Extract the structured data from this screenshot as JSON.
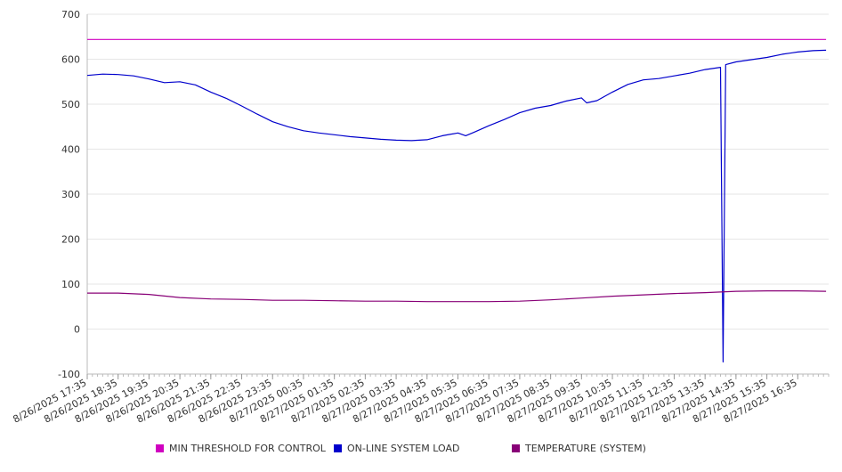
{
  "chart_data": {
    "type": "line",
    "title": "",
    "xlabel": "",
    "ylabel": "",
    "ylim": [
      -100,
      700
    ],
    "yticks": [
      -100,
      0,
      100,
      200,
      300,
      400,
      500,
      600,
      700
    ],
    "grid": true,
    "legend_position": "bottom",
    "x_tick_labels": [
      "8/26/2025 17:35",
      "8/26/2025 18:35",
      "8/26/2025 19:35",
      "8/26/2025 20:35",
      "8/26/2025 21:35",
      "8/26/2025 22:35",
      "8/26/2025 23:35",
      "8/27/2025 00:35",
      "8/27/2025 01:35",
      "8/27/2025 02:35",
      "8/27/2025 03:35",
      "8/27/2025 04:35",
      "8/27/2025 05:35",
      "8/27/2025 06:35",
      "8/27/2025 07:35",
      "8/27/2025 08:35",
      "8/27/2025 09:35",
      "8/27/2025 10:35",
      "8/27/2025 11:35",
      "8/27/2025 12:35",
      "8/27/2025 13:35",
      "8/27/2025 14:35",
      "8/27/2025 15:35",
      "8/27/2025 16:35"
    ],
    "series": [
      {
        "name": "MIN THRESHOLD FOR CONTROL",
        "color": "#d000c0",
        "points": [
          [
            "8/26/2025 17:35",
            644
          ],
          [
            "8/27/2025 17:30",
            644
          ]
        ]
      },
      {
        "name": "ON-LINE SYSTEM LOAD",
        "color": "#0000cc",
        "points": [
          [
            "8/26/2025 17:35",
            564
          ],
          [
            "8/26/2025 18:05",
            567
          ],
          [
            "8/26/2025 18:35",
            566
          ],
          [
            "8/26/2025 19:05",
            563
          ],
          [
            "8/26/2025 19:35",
            556
          ],
          [
            "8/26/2025 20:05",
            548
          ],
          [
            "8/26/2025 20:35",
            550
          ],
          [
            "8/26/2025 21:05",
            543
          ],
          [
            "8/26/2025 21:35",
            527
          ],
          [
            "8/26/2025 22:05",
            513
          ],
          [
            "8/26/2025 22:35",
            496
          ],
          [
            "8/26/2025 23:05",
            478
          ],
          [
            "8/26/2025 23:35",
            461
          ],
          [
            "8/27/2025 00:05",
            450
          ],
          [
            "8/27/2025 00:35",
            441
          ],
          [
            "8/27/2025 01:05",
            436
          ],
          [
            "8/27/2025 01:35",
            432
          ],
          [
            "8/27/2025 02:05",
            428
          ],
          [
            "8/27/2025 02:35",
            425
          ],
          [
            "8/27/2025 03:05",
            422
          ],
          [
            "8/27/2025 03:35",
            420
          ],
          [
            "8/27/2025 04:05",
            419
          ],
          [
            "8/27/2025 04:35",
            421
          ],
          [
            "8/27/2025 05:05",
            430
          ],
          [
            "8/27/2025 05:35",
            436
          ],
          [
            "8/27/2025 05:50",
            430
          ],
          [
            "8/27/2025 06:05",
            437
          ],
          [
            "8/27/2025 06:35",
            452
          ],
          [
            "8/27/2025 07:05",
            466
          ],
          [
            "8/27/2025 07:35",
            481
          ],
          [
            "8/27/2025 08:05",
            491
          ],
          [
            "8/27/2025 08:35",
            497
          ],
          [
            "8/27/2025 09:05",
            507
          ],
          [
            "8/27/2025 09:35",
            514
          ],
          [
            "8/27/2025 09:45",
            503
          ],
          [
            "8/27/2025 10:05",
            508
          ],
          [
            "8/27/2025 10:35",
            527
          ],
          [
            "8/27/2025 11:05",
            544
          ],
          [
            "8/27/2025 11:35",
            554
          ],
          [
            "8/27/2025 12:05",
            557
          ],
          [
            "8/27/2025 12:35",
            563
          ],
          [
            "8/27/2025 13:05",
            569
          ],
          [
            "8/27/2025 13:35",
            577
          ],
          [
            "8/27/2025 14:05",
            582
          ],
          [
            "8/27/2025 14:10",
            -73
          ],
          [
            "8/27/2025 14:15",
            588
          ],
          [
            "8/27/2025 14:35",
            594
          ],
          [
            "8/27/2025 15:05",
            599
          ],
          [
            "8/27/2025 15:35",
            604
          ],
          [
            "8/27/2025 16:05",
            611
          ],
          [
            "8/27/2025 16:35",
            616
          ],
          [
            "8/27/2025 17:05",
            619
          ],
          [
            "8/27/2025 17:30",
            620
          ]
        ]
      },
      {
        "name": "TEMPERATURE (SYSTEM)",
        "color": "#880077",
        "points": [
          [
            "8/26/2025 17:35",
            80
          ],
          [
            "8/26/2025 18:35",
            80
          ],
          [
            "8/26/2025 19:35",
            77
          ],
          [
            "8/26/2025 20:35",
            70
          ],
          [
            "8/26/2025 21:35",
            67
          ],
          [
            "8/26/2025 22:35",
            66
          ],
          [
            "8/26/2025 23:35",
            64
          ],
          [
            "8/27/2025 00:35",
            64
          ],
          [
            "8/27/2025 01:35",
            63
          ],
          [
            "8/27/2025 02:35",
            62
          ],
          [
            "8/27/2025 03:35",
            62
          ],
          [
            "8/27/2025 04:35",
            61
          ],
          [
            "8/27/2025 05:35",
            61
          ],
          [
            "8/27/2025 06:35",
            61
          ],
          [
            "8/27/2025 07:35",
            62
          ],
          [
            "8/27/2025 08:35",
            65
          ],
          [
            "8/27/2025 09:35",
            69
          ],
          [
            "8/27/2025 10:35",
            73
          ],
          [
            "8/27/2025 11:35",
            76
          ],
          [
            "8/27/2025 12:35",
            79
          ],
          [
            "8/27/2025 13:35",
            81
          ],
          [
            "8/27/2025 14:35",
            84
          ],
          [
            "8/27/2025 15:35",
            85
          ],
          [
            "8/27/2025 16:35",
            85
          ],
          [
            "8/27/2025 17:30",
            84
          ]
        ]
      }
    ]
  }
}
